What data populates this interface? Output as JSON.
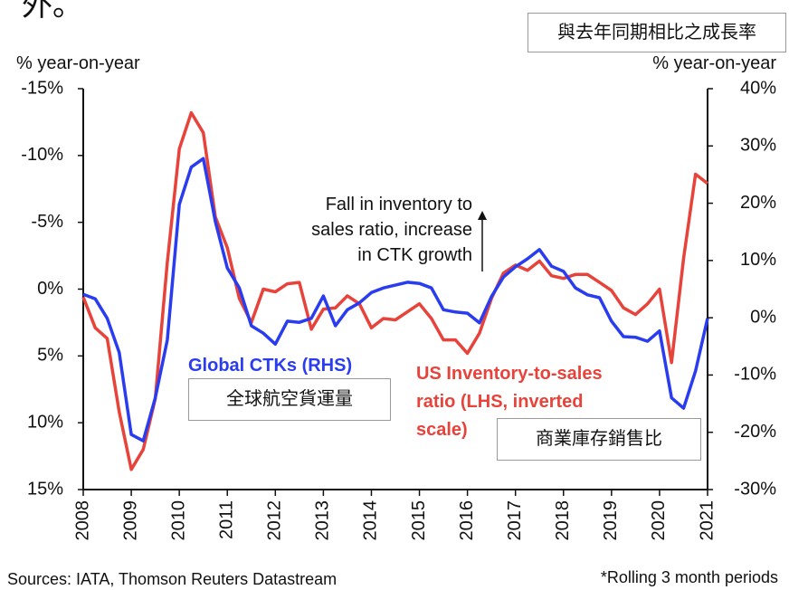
{
  "chart_data": {
    "type": "line",
    "top_fragment": "外。",
    "title": "與去年同期相比之成長率",
    "ylabel": "% year-on-year",
    "y2label": "% year-on-year",
    "y_inverted": true,
    "ylim": [
      -15,
      15
    ],
    "yticks": [
      {
        "value": -15,
        "label": "-15%"
      },
      {
        "value": -10,
        "label": "-10%"
      },
      {
        "value": -5,
        "label": "-5%"
      },
      {
        "value": 0,
        "label": "0%"
      },
      {
        "value": 5,
        "label": "5%"
      },
      {
        "value": 10,
        "label": "10%"
      },
      {
        "value": 15,
        "label": "15%"
      }
    ],
    "y2lim": [
      -30,
      40
    ],
    "y2ticks": [
      {
        "value": 40,
        "label": "40%"
      },
      {
        "value": 30,
        "label": "30%"
      },
      {
        "value": 20,
        "label": "20%"
      },
      {
        "value": 10,
        "label": "10%"
      },
      {
        "value": 0,
        "label": "0%"
      },
      {
        "value": -10,
        "label": "-10%"
      },
      {
        "value": -20,
        "label": "-20%"
      },
      {
        "value": -30,
        "label": "-30%"
      }
    ],
    "xlim": [
      2008,
      2021
    ],
    "xticks": [
      2008,
      2009,
      2010,
      2011,
      2012,
      2013,
      2014,
      2015,
      2016,
      2017,
      2018,
      2019,
      2020,
      2021
    ],
    "x": [
      2008,
      2008.25,
      2008.5,
      2008.75,
      2009,
      2009.25,
      2009.5,
      2009.75,
      2010,
      2010.25,
      2010.5,
      2010.75,
      2011,
      2011.25,
      2011.5,
      2011.75,
      2012,
      2012.25,
      2012.5,
      2012.75,
      2013,
      2013.25,
      2013.5,
      2013.75,
      2014,
      2014.25,
      2014.5,
      2014.75,
      2015,
      2015.25,
      2015.5,
      2015.75,
      2016,
      2016.25,
      2016.5,
      2016.75,
      2017,
      2017.25,
      2017.5,
      2017.75,
      2018,
      2018.25,
      2018.5,
      2018.75,
      2019,
      2019.25,
      2019.5,
      2019.75,
      2020,
      2020.25,
      2020.5,
      2020.75,
      2021
    ],
    "series": [
      {
        "name": "Global CTKs (RHS)",
        "legend_label": "全球航空貨運量",
        "color": "#2a3cf0",
        "axis": "y2",
        "values": [
          4.1,
          3.3,
          -0.1,
          -6.1,
          -20.4,
          -21.5,
          -14.0,
          -3.9,
          19.8,
          26.3,
          27.8,
          16.8,
          8.7,
          5.2,
          -1.4,
          -2.7,
          -4.6,
          -0.6,
          -0.8,
          -0.1,
          3.8,
          -1.4,
          1.4,
          2.6,
          4.4,
          5.2,
          5.7,
          6.2,
          6.0,
          5.2,
          1.4,
          1.0,
          0.8,
          -0.9,
          3.7,
          7.1,
          8.9,
          10.3,
          11.9,
          9.0,
          8.1,
          5.2,
          4.0,
          3.5,
          -0.6,
          -3.3,
          -3.4,
          -4.1,
          -2.3,
          -14.0,
          -15.8,
          -9.3,
          -0.1
        ]
      },
      {
        "name": [
          "US Inventory-to-sales",
          "ratio (LHS, inverted",
          "scale)"
        ],
        "legend_label": "商業庫存銷售比",
        "color": "#e8433a",
        "axis": "y",
        "values": [
          0.6,
          2.9,
          3.7,
          9.2,
          13.5,
          12.0,
          8.2,
          -2.0,
          -10.5,
          -13.2,
          -11.7,
          -5.4,
          -3.1,
          0.7,
          2.5,
          0.0,
          0.2,
          -0.4,
          -0.5,
          3.0,
          1.5,
          1.4,
          0.5,
          1.1,
          2.9,
          2.2,
          2.3,
          1.7,
          1.1,
          2.2,
          3.8,
          3.8,
          4.8,
          3.3,
          0.7,
          -1.2,
          -1.8,
          -1.4,
          -2.1,
          -1.0,
          -0.8,
          -1.1,
          -1.1,
          -0.5,
          0.1,
          1.4,
          1.9,
          1.1,
          0.0,
          5.5,
          -2.3,
          -8.6,
          -7.9
        ]
      }
    ],
    "annotation": [
      "Fall in inventory to",
      "sales ratio, increase",
      "in CTK growth"
    ],
    "source": "Sources: IATA, Thomson Reuters Datastream",
    "note": "*Rolling 3 month periods"
  }
}
